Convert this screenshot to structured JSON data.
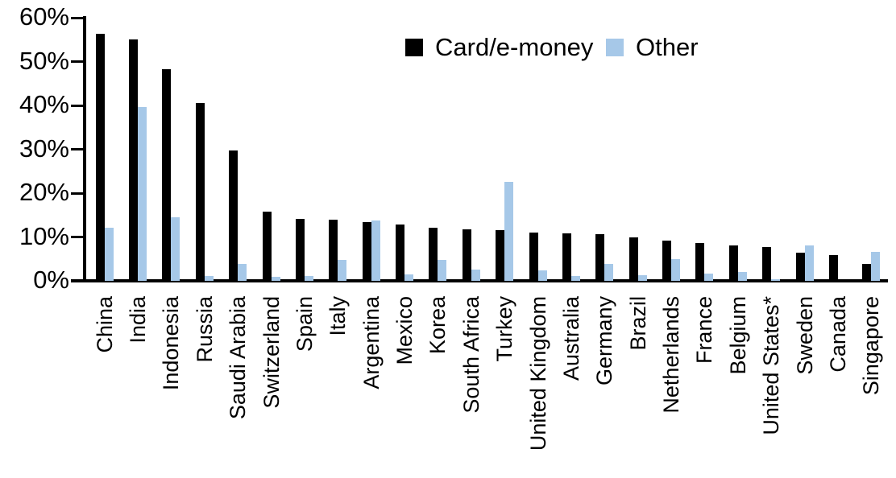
{
  "chart_data": {
    "type": "bar",
    "title": "",
    "xlabel": "",
    "ylabel": "",
    "ylim": [
      0,
      60
    ],
    "yticks": [
      "0%",
      "10%",
      "20%",
      "30%",
      "40%",
      "50%",
      "60%"
    ],
    "grid": false,
    "legend_position": "top-center",
    "categories": [
      "China",
      "India",
      "Indonesia",
      "Russia",
      "Saudi Arabia",
      "Switzerland",
      "Spain",
      "Italy",
      "Argentina",
      "Mexico",
      "Korea",
      "South Africa",
      "Turkey",
      "United Kingdom",
      "Australia",
      "Germany",
      "Brazil",
      "Netherlands",
      "France",
      "Belgium",
      "United States*",
      "Sweden",
      "Canada",
      "Singapore"
    ],
    "series": [
      {
        "name": "Card/e-money",
        "color": "#000000",
        "values": [
          56.3,
          55.1,
          48.3,
          40.5,
          29.8,
          15.7,
          14.2,
          14.0,
          13.4,
          12.9,
          12.2,
          11.7,
          11.6,
          11.0,
          10.8,
          10.6,
          10.0,
          9.2,
          8.6,
          8.1,
          7.8,
          6.5,
          5.9,
          3.8
        ]
      },
      {
        "name": "Other",
        "color": "#A6C8E8",
        "values": [
          12.2,
          39.7,
          14.5,
          1.1,
          3.9,
          0.9,
          1.1,
          4.7,
          13.8,
          1.5,
          4.7,
          2.5,
          22.5,
          2.4,
          1.1,
          3.9,
          1.3,
          4.9,
          1.6,
          2.1,
          0.3,
          8.0,
          0,
          6.6
        ]
      }
    ]
  }
}
